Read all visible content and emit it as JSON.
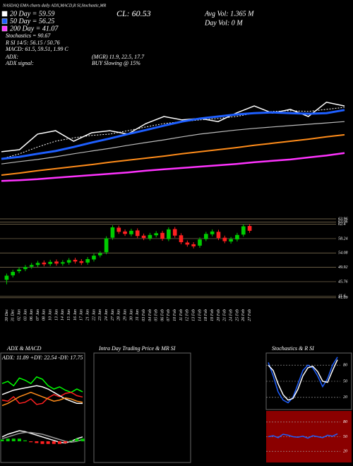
{
  "chart_data": [
    {
      "type": "line",
      "title": "NASDAQ EMA charts daily ADX,MACD,R SI,Stochastic,MR",
      "close_label": "CL: 60.53",
      "avg_vol": "Avg Vol: 1.365 M",
      "day_vol": "Day Vol: 0 M",
      "annotations": [
        "Stochastics = 90.67",
        "R SI 14/5: 56.15 / 50.76",
        "MACD: 61.5, 59.51, 1.99 C",
        "ADX:",
        "(MGR) 11.9, 22.5, 17.7",
        "ADX signal:",
        "BUY Slowing @ 15%"
      ],
      "ylim": [
        20,
        70
      ],
      "categories": [
        null,
        null,
        null,
        null,
        null,
        null,
        null,
        null,
        null,
        null,
        null,
        null,
        null,
        null,
        null,
        null,
        null,
        null,
        null,
        null
      ],
      "series": [
        {
          "color": "#ffffff",
          "values": [
            29.4,
            30.0,
            34.6,
            35.6,
            32.5,
            35.0,
            35.6,
            34.6,
            37.7,
            39.8,
            38.8,
            39.2,
            38.3,
            40.8,
            42.9,
            40.8,
            41.9,
            39.8,
            44.0,
            42.9
          ]
        },
        {
          "name": "20 Day = 59.59",
          "color": "#ffffff",
          "dash": true,
          "values": [
            27.3,
            28.8,
            30.8,
            32.5,
            33.5,
            34.2,
            34.6,
            35.6,
            36.7,
            37.7,
            38.3,
            38.8,
            39.2,
            39.8,
            40.8,
            41.3,
            41.5,
            41.3,
            41.9,
            42.5
          ]
        },
        {
          "name": "50 Day = 56.25",
          "color": "#1e5fff",
          "values": [
            27.3,
            27.9,
            28.8,
            29.6,
            30.8,
            32.1,
            33.3,
            34.6,
            35.8,
            37.1,
            38.3,
            39.2,
            39.8,
            40.4,
            40.8,
            41.0,
            40.8,
            40.6,
            40.8,
            41.7
          ]
        },
        {
          "color": "#bbbbbb",
          "values": [
            25.8,
            26.5,
            27.1,
            27.9,
            28.8,
            29.6,
            30.4,
            31.3,
            32.1,
            32.9,
            33.8,
            34.6,
            35.2,
            35.8,
            36.3,
            36.7,
            37.1,
            37.5,
            37.9,
            38.3
          ]
        },
        {
          "color": "#ff8c1a",
          "values": [
            22.5,
            23.1,
            23.8,
            24.4,
            25.0,
            25.6,
            26.3,
            26.9,
            27.5,
            28.1,
            28.8,
            29.4,
            30.0,
            30.6,
            31.3,
            31.9,
            32.5,
            33.1,
            33.8,
            34.4
          ]
        },
        {
          "name": "200 Day = 41.07",
          "color": "#ff33ff",
          "values": [
            20.8,
            21.0,
            21.3,
            21.7,
            22.1,
            22.5,
            22.9,
            23.3,
            23.8,
            24.2,
            24.6,
            25.0,
            25.4,
            25.8,
            26.3,
            26.7,
            27.1,
            27.7,
            28.3,
            29.0
          ]
        }
      ]
    },
    {
      "type": "candlestick",
      "categories": [
        "30 Dec",
        "31 Dec",
        "02 Jan",
        "03 Jan",
        "06 Jan",
        "07 Jan",
        "08 Jan",
        "10 Jan",
        "13 Jan",
        "14 Jan",
        "15 Jan",
        "16 Jan",
        "17 Jan",
        "21 Jan",
        "22 Jan",
        "23 Jan",
        "24 Jan",
        "27 Jan",
        "28 Jan",
        "29 Jan",
        "30 Jan",
        "31 Jan",
        "03 Feb",
        "04 Feb",
        "05 Feb",
        "06 Feb",
        "07 Feb",
        "10 Feb",
        "11 Feb",
        "12 Feb",
        "13 Feb",
        "14 Feb",
        "18 Feb",
        "19 Feb",
        "20 Feb",
        "21 Feb",
        "24 Feb",
        "25 Feb",
        "26 Feb",
        "27 Feb"
      ],
      "open": [
        46.3,
        47.6,
        48.8,
        49.4,
        50.1,
        50.6,
        51.3,
        50.9,
        51.6,
        51.0,
        51.3,
        52.1,
        51.7,
        51.3,
        52.2,
        53.4,
        54.3,
        58.5,
        61.4,
        60.3,
        59.5,
        60.6,
        59.1,
        58.3,
        59.2,
        59.9,
        58.1,
        61.0,
        59.2,
        57.1,
        56.6,
        56.2,
        58.1,
        59.5,
        60.2,
        58.5,
        57.4,
        58.0,
        59.4,
        61.9
      ],
      "high": [
        48.1,
        49.2,
        49.9,
        50.6,
        51.2,
        51.8,
        51.9,
        52.1,
        52.2,
        52.0,
        52.6,
        52.7,
        52.3,
        52.9,
        53.9,
        54.6,
        58.9,
        62.1,
        62.0,
        60.9,
        61.1,
        61.2,
        59.7,
        59.9,
        60.4,
        60.5,
        61.5,
        61.6,
        59.8,
        57.7,
        57.2,
        58.6,
        60.2,
        60.9,
        60.8,
        59.1,
        58.7,
        59.9,
        62.4,
        62.5
      ],
      "low": [
        45.0,
        47.0,
        48.2,
        48.8,
        49.5,
        50.0,
        50.2,
        50.3,
        50.4,
        50.4,
        50.7,
        51.0,
        50.6,
        50.7,
        51.6,
        52.8,
        53.7,
        57.9,
        59.6,
        59.0,
        58.9,
        58.4,
        57.8,
        57.7,
        58.6,
        57.6,
        57.5,
        58.5,
        56.6,
        55.9,
        55.4,
        55.6,
        57.5,
        58.9,
        57.8,
        56.9,
        56.8,
        57.4,
        58.8,
        59.9
      ],
      "close": [
        47.5,
        48.6,
        49.3,
        50.0,
        50.6,
        51.2,
        50.8,
        51.5,
        51.0,
        51.4,
        52.0,
        51.6,
        51.2,
        52.3,
        53.3,
        54.0,
        58.3,
        61.5,
        60.2,
        59.6,
        60.5,
        59.0,
        58.4,
        59.3,
        59.8,
        58.2,
        60.9,
        59.1,
        57.2,
        56.5,
        56.0,
        58.0,
        59.6,
        60.3,
        58.4,
        57.5,
        58.1,
        59.3,
        61.8,
        60.5
      ],
      "up_color": "#00cc00",
      "down_color": "#ff2020",
      "ylim": [
        39,
        66
      ],
      "yticks": [
        41.09,
        41.6,
        45.76,
        49.92,
        54.08,
        58.24,
        62.4,
        63.06,
        63.96
      ],
      "grid": true
    },
    {
      "type": "line",
      "title": "ADX & MACD",
      "subtitle": "ADX: 11.89 +DY: 22.54 -DY: 17.75",
      "ylim": [
        0,
        50
      ],
      "y2lim": [
        -2,
        2
      ],
      "series": [
        {
          "color": "#00ff00",
          "values": [
            30,
            32,
            28,
            35,
            33,
            30,
            36,
            34,
            28,
            25,
            27,
            24,
            22,
            25,
            22.5
          ]
        },
        {
          "color": "#ff2020",
          "values": [
            15,
            14,
            18,
            12,
            13,
            16,
            11,
            12,
            17,
            20,
            18,
            21,
            22,
            19,
            17.75
          ]
        },
        {
          "color": "#ffffff",
          "values": [
            20,
            22,
            24,
            25,
            26,
            27,
            28,
            27,
            25,
            22,
            19,
            16,
            14,
            12,
            11.9
          ]
        },
        {
          "color": "#ff8c1a",
          "values": [
            10,
            12,
            15,
            18,
            20,
            22,
            20,
            18,
            16,
            14,
            15,
            17,
            16,
            14,
            13
          ]
        },
        {
          "color": "#ffffff",
          "axis": "y2",
          "values": [
            0.5,
            0.8,
            1.0,
            1.2,
            1.1,
            0.9,
            0.7,
            0.5,
            0.3,
            0.1,
            -0.1,
            -0.2,
            0.0,
            0.3,
            0.5
          ]
        },
        {
          "color": "#999999",
          "axis": "y2",
          "values": [
            0.3,
            0.5,
            0.7,
            0.9,
            1.0,
            1.0,
            0.9,
            0.8,
            0.6,
            0.4,
            0.2,
            0.0,
            -0.1,
            0.0,
            0.2
          ]
        },
        {
          "type": "bar",
          "color": "#00cc00",
          "axis": "y2",
          "values": [
            0.2,
            0.3,
            0.3,
            0.3,
            0.1,
            -0.1,
            -0.2,
            -0.3,
            -0.3,
            -0.3,
            -0.3,
            -0.2,
            0.1,
            0.3,
            0.3
          ]
        }
      ]
    },
    {
      "type": "line",
      "title": "Intra Day Trading Price & MR SI",
      "series": []
    },
    {
      "type": "line",
      "title": "Stochastics & R SI",
      "ylim": [
        0,
        100
      ],
      "yticks": [
        20,
        50,
        80
      ],
      "series": [
        {
          "color": "#1e5fff",
          "values": [
            85,
            60,
            30,
            15,
            10,
            20,
            45,
            70,
            80,
            75,
            60,
            40,
            55,
            80,
            95
          ]
        },
        {
          "color": "#ffffff",
          "values": [
            80,
            70,
            45,
            25,
            15,
            18,
            35,
            60,
            75,
            78,
            68,
            50,
            48,
            70,
            90
          ]
        }
      ]
    },
    {
      "type": "line",
      "background": "#8b0000",
      "ylim": [
        0,
        100
      ],
      "yticks": [
        20,
        50,
        80
      ],
      "series": [
        {
          "color": "#1e5fff",
          "values": [
            50,
            52,
            48,
            55,
            53,
            50,
            49,
            51,
            47,
            52,
            50,
            48,
            53,
            51,
            56
          ]
        }
      ]
    }
  ]
}
